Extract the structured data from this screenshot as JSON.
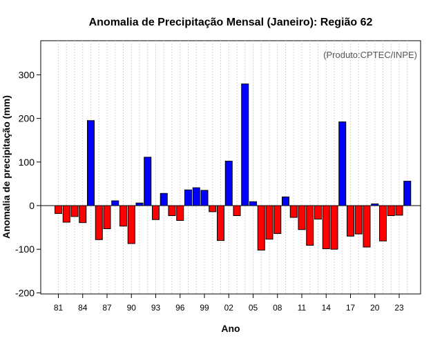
{
  "chart_data": {
    "type": "bar",
    "title": "Anomalia de Precipitação Mensal (Janeiro): Região 62",
    "xlabel": "Ano",
    "ylabel": "Anomalia de precipitação (mm)",
    "annotation": "(Produto:CPTEC/INPE)",
    "ylim": [
      -205,
      380
    ],
    "yticks": [
      -200,
      -100,
      0,
      100,
      200,
      300
    ],
    "xtick_labels": [
      {
        "index": 0,
        "label": "81"
      },
      {
        "index": 3,
        "label": "84"
      },
      {
        "index": 6,
        "label": "87"
      },
      {
        "index": 9,
        "label": "90"
      },
      {
        "index": 12,
        "label": "93"
      },
      {
        "index": 15,
        "label": "96"
      },
      {
        "index": 18,
        "label": "99"
      },
      {
        "index": 21,
        "label": "02"
      },
      {
        "index": 24,
        "label": "05"
      },
      {
        "index": 27,
        "label": "08"
      },
      {
        "index": 30,
        "label": "11"
      },
      {
        "index": 33,
        "label": "14"
      },
      {
        "index": 36,
        "label": "17"
      },
      {
        "index": 39,
        "label": "20"
      },
      {
        "index": 42,
        "label": "23"
      }
    ],
    "years": [
      1981,
      1982,
      1983,
      1984,
      1985,
      1986,
      1987,
      1988,
      1989,
      1990,
      1991,
      1992,
      1993,
      1994,
      1995,
      1996,
      1997,
      1998,
      1999,
      2000,
      2001,
      2002,
      2003,
      2004,
      2005,
      2006,
      2007,
      2008,
      2009,
      2010,
      2011,
      2012,
      2013,
      2014,
      2015,
      2016,
      2017,
      2018,
      2019,
      2020,
      2021,
      2022,
      2023,
      2024
    ],
    "values": [
      -18,
      -38,
      -25,
      -39,
      195,
      -78,
      -53,
      11,
      -47,
      -87,
      6,
      111,
      -32,
      28,
      -23,
      -34,
      36,
      41,
      35,
      -14,
      -80,
      102,
      -23,
      279,
      9,
      -102,
      -77,
      -64,
      20,
      -27,
      -55,
      -91,
      -31,
      -99,
      -100,
      192,
      -70,
      -65,
      -95,
      4,
      -81,
      -23,
      -22,
      56
    ],
    "colors": {
      "positive": "#0000ff",
      "negative": "#ff0000",
      "grid": "#d3d3d3",
      "axis": "#000000"
    },
    "grid": true
  }
}
